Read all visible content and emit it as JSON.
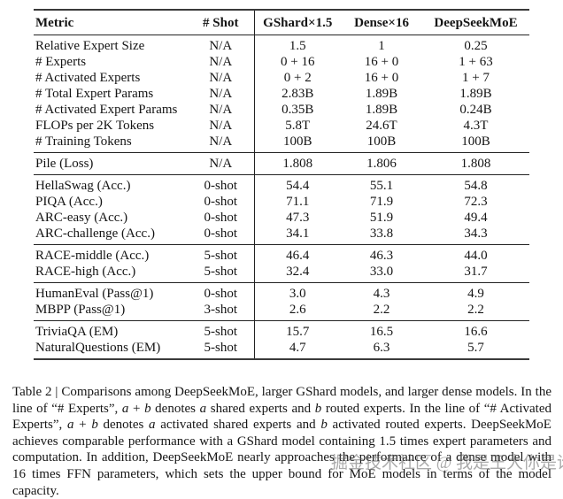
{
  "table": {
    "columns": [
      "Metric",
      "# Shot",
      "GShard×1.5",
      "Dense×16",
      "DeepSeekMoE"
    ],
    "column_keys": [
      "metric",
      "shot",
      "gshard",
      "dense",
      "deepseekmoe"
    ],
    "groups": [
      {
        "rows": [
          [
            "Relative Expert Size",
            "N/A",
            "1.5",
            "1",
            "0.25"
          ],
          [
            "# Experts",
            "N/A",
            "0 + 16",
            "16 + 0",
            "1 + 63"
          ],
          [
            "# Activated Experts",
            "N/A",
            "0 + 2",
            "16 + 0",
            "1 + 7"
          ],
          [
            "# Total Expert Params",
            "N/A",
            "2.83B",
            "1.89B",
            "1.89B"
          ],
          [
            "# Activated Expert Params",
            "N/A",
            "0.35B",
            "1.89B",
            "0.24B"
          ],
          [
            "FLOPs per 2K Tokens",
            "N/A",
            "5.8T",
            "24.6T",
            "4.3T"
          ],
          [
            "# Training Tokens",
            "N/A",
            "100B",
            "100B",
            "100B"
          ]
        ]
      },
      {
        "rows": [
          [
            "Pile (Loss)",
            "N/A",
            "1.808",
            "1.806",
            "1.808"
          ]
        ]
      },
      {
        "rows": [
          [
            "HellaSwag (Acc.)",
            "0-shot",
            "54.4",
            "55.1",
            "54.8"
          ],
          [
            "PIQA (Acc.)",
            "0-shot",
            "71.1",
            "71.9",
            "72.3"
          ],
          [
            "ARC-easy (Acc.)",
            "0-shot",
            "47.3",
            "51.9",
            "49.4"
          ],
          [
            "ARC-challenge (Acc.)",
            "0-shot",
            "34.1",
            "33.8",
            "34.3"
          ]
        ]
      },
      {
        "rows": [
          [
            "RACE-middle (Acc.)",
            "5-shot",
            "46.4",
            "46.3",
            "44.0"
          ],
          [
            "RACE-high (Acc.)",
            "5-shot",
            "32.4",
            "33.0",
            "31.7"
          ]
        ]
      },
      {
        "rows": [
          [
            "HumanEval (Pass@1)",
            "0-shot",
            "3.0",
            "4.3",
            "4.9"
          ],
          [
            "MBPP (Pass@1)",
            "3-shot",
            "2.6",
            "2.2",
            "2.2"
          ]
        ]
      },
      {
        "rows": [
          [
            "TriviaQA (EM)",
            "5-shot",
            "15.7",
            "16.5",
            "16.6"
          ],
          [
            "NaturalQuestions (EM)",
            "5-shot",
            "4.7",
            "6.3",
            "5.7"
          ]
        ]
      }
    ]
  },
  "caption": {
    "segments": [
      {
        "text": "Table 2 | Comparisons among DeepSeekMoE, larger GShard models, and larger dense models. In the line of “# Experts”, ",
        "italic": false
      },
      {
        "text": "a",
        "italic": true
      },
      {
        "text": " + ",
        "italic": false
      },
      {
        "text": "b",
        "italic": true
      },
      {
        "text": " denotes ",
        "italic": false
      },
      {
        "text": "a",
        "italic": true
      },
      {
        "text": " shared experts and ",
        "italic": false
      },
      {
        "text": "b",
        "italic": true
      },
      {
        "text": " routed experts.  In the line of “# Activated Experts”, ",
        "italic": false
      },
      {
        "text": "a",
        "italic": true
      },
      {
        "text": " + ",
        "italic": false
      },
      {
        "text": "b",
        "italic": true
      },
      {
        "text": " denotes ",
        "italic": false
      },
      {
        "text": "a",
        "italic": true
      },
      {
        "text": " activated shared experts and ",
        "italic": false
      },
      {
        "text": "b",
        "italic": true
      },
      {
        "text": " activated routed experts. DeepSeekMoE achieves comparable performance with a GShard model containing 1.5 times expert parameters and computation. In addition, DeepSeekMoE nearly approaches the performance of a dense model with 16 times FFN parameters, which sets the upper bound for MoE models in terms of the model capacity.",
        "italic": false
      }
    ]
  },
  "watermark": {
    "text": "掘金技术社区 @ 我是王大你是谁"
  },
  "colors": {
    "text": "#141414",
    "rule": "#222222",
    "watermark_gray": "#646464",
    "background": "#ffffff"
  }
}
